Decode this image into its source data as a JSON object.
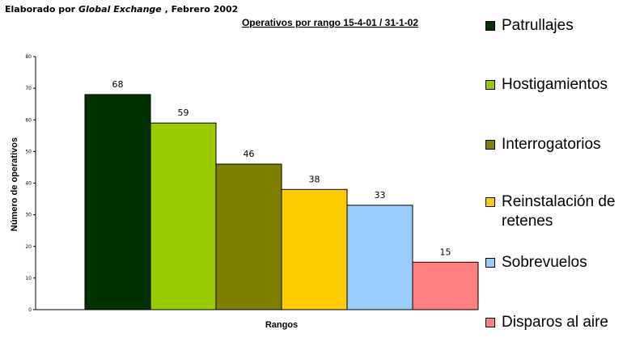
{
  "credit": {
    "prefix": "Elaborado por ",
    "org": "Global Exchange",
    "suffix": " , Febrero 2002"
  },
  "chart_data": {
    "type": "bar",
    "title": "Operativos por rango 15-4-01 / 31-1-02",
    "xlabel": "Rangos",
    "ylabel": "Número de operativos",
    "ylim": [
      0,
      80
    ],
    "yticks": [
      0,
      10,
      20,
      30,
      40,
      50,
      60,
      70,
      80
    ],
    "categories": [
      "Patrullajes",
      "Hostigamientos",
      "Interrogatorios",
      "Reinstalación de retenes",
      "Sobrevuelos",
      "Disparos al aire"
    ],
    "values": [
      68,
      59,
      46,
      38,
      33,
      15
    ],
    "colors": [
      "#003300",
      "#99cc00",
      "#808000",
      "#ffcc00",
      "#99ccff",
      "#ff8080"
    ],
    "grid": false,
    "legend_position": "right"
  }
}
